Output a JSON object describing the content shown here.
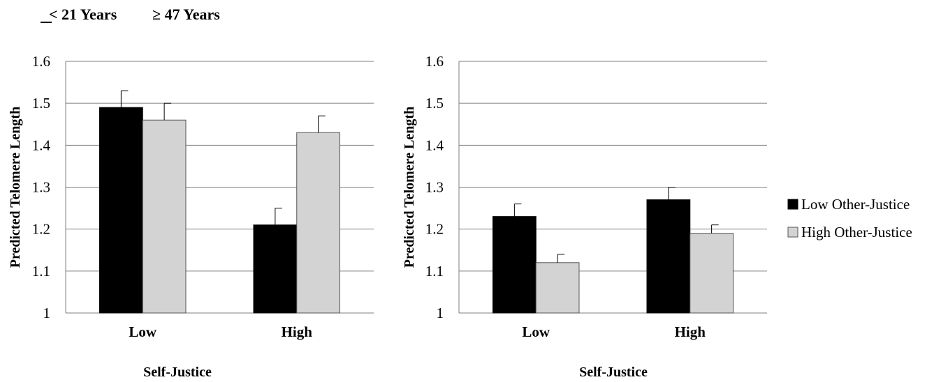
{
  "headers": {
    "left": "< 21 Years",
    "right": "≥ 47 Years"
  },
  "legend": [
    {
      "label": "Low Other-Justice",
      "color": "#000000"
    },
    {
      "label": "High Other-Justice",
      "color": "#d3d3d3"
    }
  ],
  "chart_data": [
    {
      "type": "bar",
      "title": "< 21 Years",
      "categories": [
        "Low",
        "High"
      ],
      "series": [
        {
          "name": "Low Other-Justice",
          "values": [
            1.49,
            1.21
          ],
          "errors": [
            0.04,
            0.04
          ]
        },
        {
          "name": "High Other-Justice",
          "values": [
            1.46,
            1.43
          ],
          "errors": [
            0.04,
            0.04
          ]
        }
      ],
      "xlabel": "Self-Justice",
      "ylabel": "Predicted Telomere Length",
      "ylim": [
        1,
        1.6
      ],
      "yticks": [
        "1",
        "1.1",
        "1.2",
        "1.3",
        "1.4",
        "1.5",
        "1.6"
      ],
      "grid": true
    },
    {
      "type": "bar",
      "title": "≥ 47 Years",
      "categories": [
        "Low",
        "High"
      ],
      "series": [
        {
          "name": "Low Other-Justice",
          "values": [
            1.23,
            1.27
          ],
          "errors": [
            0.03,
            0.03
          ]
        },
        {
          "name": "High Other-Justice",
          "values": [
            1.12,
            1.19
          ],
          "errors": [
            0.02,
            0.02
          ]
        }
      ],
      "xlabel": "Self-Justice",
      "ylabel": "Predicted Telomere Length",
      "ylim": [
        1,
        1.6
      ],
      "yticks": [
        "1",
        "1.1",
        "1.2",
        "1.3",
        "1.4",
        "1.5",
        "1.6"
      ],
      "grid": true,
      "legend_position": "right"
    }
  ]
}
